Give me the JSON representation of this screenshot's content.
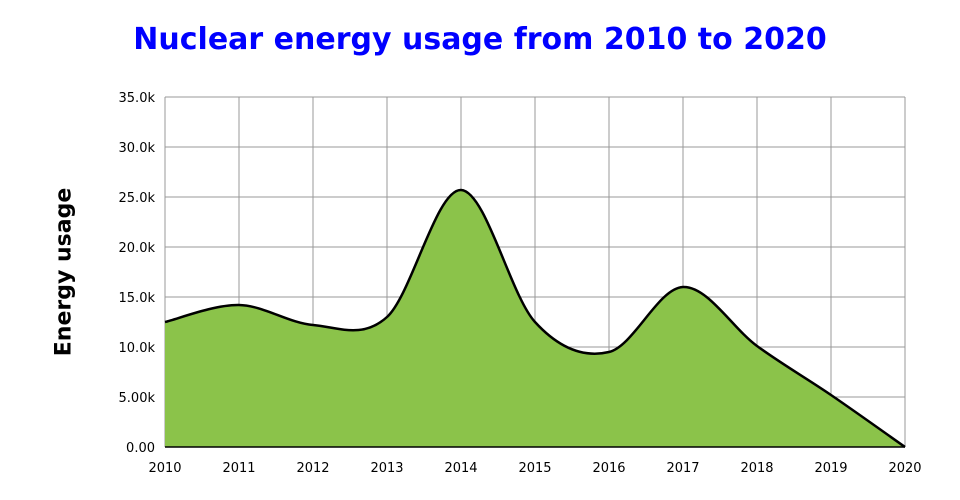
{
  "chart_data": {
    "type": "area",
    "title": "Nuclear energy usage from 2010 to 2020",
    "xlabel": "",
    "ylabel": "Energy usage",
    "x": [
      2010,
      2011,
      2012,
      2013,
      2014,
      2015,
      2016,
      2017,
      2018,
      2019,
      2020
    ],
    "series": [
      {
        "name": "Energy usage",
        "values": [
          12500,
          14200,
          12200,
          13000,
          25700,
          12500,
          9500,
          16000,
          10100,
          5200,
          0
        ]
      }
    ],
    "ylim": [
      0,
      35000
    ],
    "yticks": [
      0,
      5000,
      10000,
      15000,
      20000,
      25000,
      30000,
      35000
    ],
    "ytick_labels": [
      "0.00",
      "5.00k",
      "10.0k",
      "15.0k",
      "20.0k",
      "25.0k",
      "30.0k",
      "35.0k"
    ],
    "xtick_labels": [
      "2010",
      "2011",
      "2012",
      "2013",
      "2014",
      "2015",
      "2016",
      "2017",
      "2018",
      "2019",
      "2020"
    ],
    "grid": true,
    "fill_color": "#8bc34a",
    "line_color": "#000000",
    "title_color": "#0000ff"
  }
}
